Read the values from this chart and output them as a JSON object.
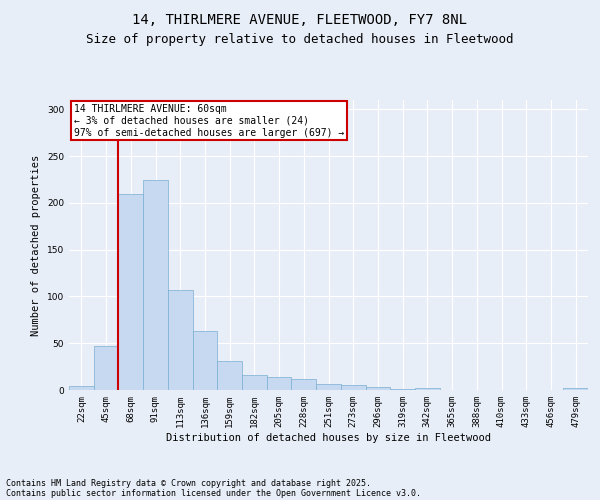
{
  "title1": "14, THIRLMERE AVENUE, FLEETWOOD, FY7 8NL",
  "title2": "Size of property relative to detached houses in Fleetwood",
  "xlabel": "Distribution of detached houses by size in Fleetwood",
  "ylabel": "Number of detached properties",
  "categories": [
    "22sqm",
    "45sqm",
    "68sqm",
    "91sqm",
    "113sqm",
    "136sqm",
    "159sqm",
    "182sqm",
    "205sqm",
    "228sqm",
    "251sqm",
    "273sqm",
    "296sqm",
    "319sqm",
    "342sqm",
    "365sqm",
    "388sqm",
    "410sqm",
    "433sqm",
    "456sqm",
    "479sqm"
  ],
  "values": [
    4,
    47,
    210,
    225,
    107,
    63,
    31,
    16,
    14,
    12,
    6,
    5,
    3,
    1,
    2,
    0,
    0,
    0,
    0,
    0,
    2
  ],
  "bar_color": "#c6d9f0",
  "bar_edge_color": "#7aafd4",
  "ylim": [
    0,
    310
  ],
  "yticks": [
    0,
    50,
    100,
    150,
    200,
    250,
    300
  ],
  "annotation_text": "14 THIRLMERE AVENUE: 60sqm\n← 3% of detached houses are smaller (24)\n97% of semi-detached houses are larger (697) →",
  "annotation_box_color": "#ffffff",
  "annotation_box_edge": "#cc0000",
  "vline_color": "#cc0000",
  "vline_x": 1.5,
  "footer1": "Contains HM Land Registry data © Crown copyright and database right 2025.",
  "footer2": "Contains public sector information licensed under the Open Government Licence v3.0.",
  "background_color": "#e8eef8",
  "plot_bg_color": "#e8eef8",
  "title_fontsize": 10,
  "subtitle_fontsize": 9,
  "label_fontsize": 7.5,
  "tick_fontsize": 6.5,
  "footer_fontsize": 6,
  "ann_fontsize": 7
}
